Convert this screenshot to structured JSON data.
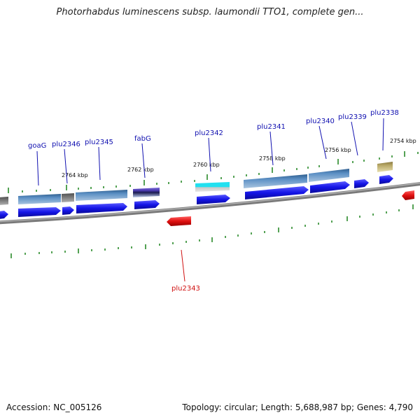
{
  "title": "Photorhabdus luminescens subsp. laumondii TTO1, complete gen...",
  "accession": "Accession: NC_005126",
  "topology": "Topology: circular; Length: 5,688,987 bp; Genes: 4,790",
  "scale_labels": [
    "2764 kbp",
    "2762 kbp",
    "2760 kbp",
    "2758 kbp",
    "2756 kbp",
    "2754 kbp"
  ],
  "genes": [
    {
      "label": "goaG",
      "color": "#1010b0"
    },
    {
      "label": "plu2346",
      "color": "#1010b0"
    },
    {
      "label": "plu2345",
      "color": "#1010b0"
    },
    {
      "label": "fabG",
      "color": "#1010b0"
    },
    {
      "label": "plu2342",
      "color": "#1010b0"
    },
    {
      "label": "plu2341",
      "color": "#1010b0"
    },
    {
      "label": "plu2340",
      "color": "#1010b0"
    },
    {
      "label": "plu2339",
      "color": "#1010b0"
    },
    {
      "label": "plu2338",
      "color": "#1010b0"
    },
    {
      "label": "plu2343",
      "color": "#d01010"
    }
  ],
  "colors": {
    "forward_cds": "#1414e6",
    "reverse_cds": "#e01010",
    "steelblue_bar": "#4a7fb5",
    "cyan_bar": "#22e0f0",
    "olive_bar": "#a89a5a",
    "gray_bar": "#707070",
    "tick": "#2a8a2a",
    "backbone": "#808080"
  }
}
